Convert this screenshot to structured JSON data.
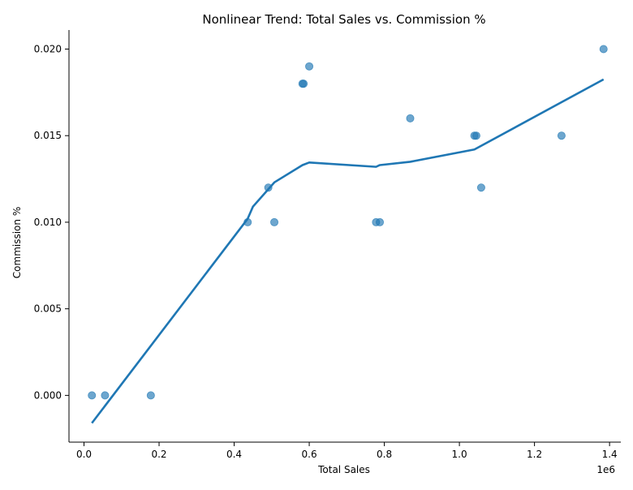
{
  "chart_data": {
    "type": "scatter",
    "title": "Nonlinear Trend: Total Sales vs. Commission %",
    "xlabel": "Total Sales",
    "ylabel": "Commission %",
    "x_offset_label": "1e6",
    "xlim": [
      -40000,
      1430000
    ],
    "ylim": [
      -0.0027,
      0.0211
    ],
    "x_ticks": [
      0,
      200000,
      400000,
      600000,
      800000,
      1000000,
      1200000,
      1400000
    ],
    "x_tick_labels": [
      "0.0",
      "0.2",
      "0.4",
      "0.6",
      "0.8",
      "1.0",
      "1.2",
      "1.4"
    ],
    "y_ticks": [
      0.0,
      0.005,
      0.01,
      0.015,
      0.02
    ],
    "y_tick_labels": [
      "0.000",
      "0.005",
      "0.010",
      "0.015",
      "0.020"
    ],
    "grid": false,
    "colors": {
      "points": "#1f77b4",
      "trend": "#1f77b4",
      "axis": "#000000"
    },
    "series": [
      {
        "kind": "scatter",
        "x": [
          21000,
          56000,
          178000,
          436000,
          491000,
          507000,
          582000,
          585000,
          600000,
          778000,
          788000,
          869000,
          1040000,
          1045000,
          1058000,
          1272000,
          1384000
        ],
        "y": [
          0.0,
          0.0,
          0.0,
          0.01,
          0.012,
          0.01,
          0.018,
          0.018,
          0.019,
          0.01,
          0.01,
          0.016,
          0.015,
          0.015,
          0.012,
          0.015,
          0.02
        ]
      },
      {
        "kind": "line",
        "x": [
          21000,
          436000,
          450000,
          507000,
          582000,
          600000,
          778000,
          788000,
          869000,
          1040000,
          1384000
        ],
        "y": [
          -0.0016,
          0.0102,
          0.0109,
          0.0123,
          0.0133,
          0.01345,
          0.0132,
          0.0133,
          0.01349,
          0.0142,
          0.01825
        ]
      }
    ]
  }
}
